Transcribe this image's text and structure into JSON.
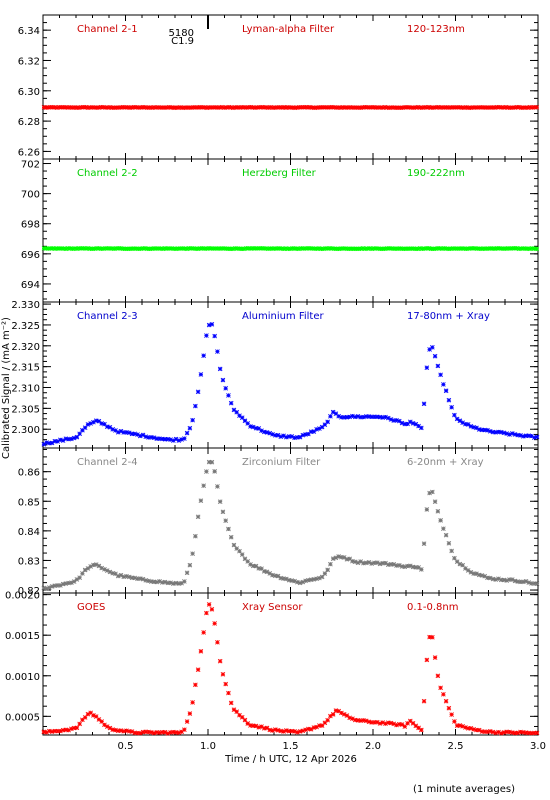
{
  "chart_data": [
    {
      "type": "scatter",
      "panel": "Channel 2-1",
      "annotations": [
        "Channel 2-1",
        "Lyman-alpha Filter",
        "120-123nm"
      ],
      "colors": {
        "annotation": "#cc0000",
        "series": "#ff0000"
      },
      "ylim": [
        6.255,
        6.35
      ],
      "yticks": [
        "6.26",
        "6.28",
        "6.30",
        "6.32",
        "6.34"
      ],
      "marker": {
        "time": 1.0,
        "labels": [
          "5180",
          "C1.9"
        ]
      },
      "series": [
        {
          "shape": "flat",
          "level": 6.289,
          "noise": 0.0002
        }
      ]
    },
    {
      "type": "scatter",
      "panel": "Channel 2-2",
      "annotations": [
        "Channel 2-2",
        "Herzberg Filter",
        "190-222nm"
      ],
      "colors": {
        "annotation": "#00cc00",
        "series": "#00ff00"
      },
      "ylim": [
        692.8,
        702.3
      ],
      "yticks": [
        "694",
        "696",
        "698",
        "700",
        "702"
      ],
      "series": [
        {
          "shape": "flat",
          "level": 696.35,
          "noise": 0.02
        }
      ]
    },
    {
      "type": "scatter",
      "panel": "Channel 2-3",
      "annotations": [
        "Channel 2-3",
        "Aluminium Filter",
        "17-80nm + Xray"
      ],
      "colors": {
        "annotation": "#0000cc",
        "series": "#0000ff"
      },
      "ylim": [
        2.2955,
        2.3305
      ],
      "yticks": [
        "2.300",
        "2.305",
        "2.310",
        "2.315",
        "2.320",
        "2.325",
        "2.330"
      ],
      "series": [
        {
          "shape": "events",
          "x": [
            0.0,
            0.2,
            0.27,
            0.33,
            0.45,
            0.6,
            0.75,
            0.85,
            0.9,
            0.95,
            1.0,
            1.03,
            1.08,
            1.15,
            1.25,
            1.4,
            1.55,
            1.7,
            1.76,
            1.8,
            1.9,
            2.05,
            2.15,
            2.2,
            2.22,
            2.3,
            2.32,
            2.35,
            2.4,
            2.5,
            2.6,
            2.7,
            2.8,
            2.9,
            3.0
          ],
          "y": [
            2.2965,
            2.298,
            2.301,
            2.302,
            2.2995,
            2.2985,
            2.2975,
            2.2975,
            2.301,
            2.311,
            2.325,
            2.325,
            2.313,
            2.305,
            2.301,
            2.2985,
            2.298,
            2.3005,
            2.304,
            2.303,
            2.303,
            2.303,
            2.302,
            2.301,
            2.302,
            2.3,
            2.313,
            2.321,
            2.314,
            2.3025,
            2.3005,
            2.2995,
            2.299,
            2.2985,
            2.298
          ]
        }
      ]
    },
    {
      "type": "scatter",
      "panel": "Channel 2-4",
      "annotations": [
        "Channel 2-4",
        "Zirconium Filter",
        "6-20nm + Xray"
      ],
      "colors": {
        "annotation": "#888888",
        "series": "#777777"
      },
      "ylim": [
        0.819,
        0.868
      ],
      "yticks": [
        "0.82",
        "0.83",
        "0.84",
        "0.85",
        "0.86"
      ],
      "series": [
        {
          "shape": "events",
          "x": [
            0.0,
            0.2,
            0.27,
            0.32,
            0.45,
            0.6,
            0.75,
            0.85,
            0.9,
            0.95,
            1.0,
            1.03,
            1.08,
            1.15,
            1.25,
            1.4,
            1.55,
            1.7,
            1.76,
            1.8,
            1.9,
            2.05,
            2.15,
            2.2,
            2.22,
            2.3,
            2.32,
            2.35,
            2.4,
            2.5,
            2.6,
            2.7,
            2.8,
            2.9,
            3.0
          ],
          "y": [
            0.8205,
            0.823,
            0.8275,
            0.8285,
            0.825,
            0.8235,
            0.8225,
            0.822,
            0.83,
            0.848,
            0.863,
            0.863,
            0.848,
            0.836,
            0.829,
            0.825,
            0.8225,
            0.8245,
            0.8305,
            0.8315,
            0.8295,
            0.829,
            0.8285,
            0.8275,
            0.8285,
            0.827,
            0.845,
            0.855,
            0.845,
            0.83,
            0.826,
            0.824,
            0.8235,
            0.823,
            0.822
          ]
        }
      ]
    },
    {
      "type": "scatter",
      "panel": "GOES",
      "annotations": [
        "GOES",
        "Xray Sensor",
        "0.1-0.8nm"
      ],
      "colors": {
        "annotation": "#cc0000",
        "series": "#ff0000"
      },
      "ylim": [
        0.00027,
        0.00202
      ],
      "yticks": [
        "0.0005",
        "0.0010",
        "0.0015",
        "0.0020"
      ],
      "series": [
        {
          "shape": "events",
          "x": [
            0.0,
            0.2,
            0.28,
            0.32,
            0.4,
            0.55,
            0.75,
            0.85,
            0.9,
            0.95,
            1.0,
            1.03,
            1.08,
            1.15,
            1.25,
            1.4,
            1.55,
            1.7,
            1.78,
            1.82,
            1.9,
            2.05,
            2.15,
            2.2,
            2.22,
            2.3,
            2.32,
            2.35,
            2.4,
            2.5,
            2.6,
            2.7,
            2.8,
            2.9,
            3.0
          ],
          "y": [
            0.0003,
            0.00035,
            0.00055,
            0.0005,
            0.00035,
            0.0003,
            0.0003,
            0.0003,
            0.0006,
            0.0012,
            0.0019,
            0.0018,
            0.0011,
            0.0006,
            0.0004,
            0.00033,
            0.0003,
            0.0004,
            0.00058,
            0.00052,
            0.00045,
            0.00042,
            0.0004,
            0.00038,
            0.00045,
            0.00032,
            0.0011,
            0.0016,
            0.0009,
            0.0004,
            0.00034,
            0.00031,
            0.0003,
            0.0003,
            0.00029
          ]
        }
      ]
    }
  ],
  "x_axis": {
    "xlim": [
      0,
      3.0
    ],
    "ticks": [
      0.5,
      1.0,
      1.5,
      2.0,
      2.5,
      3.0
    ],
    "tick_labels": [
      "0.5",
      "1.0",
      "1.5",
      "2.0",
      "2.5",
      "3.0"
    ],
    "label": "Time / h UTC, 12 Apr 2026"
  },
  "y_axis_label": "Calibrated Signal / (mA m⁻²)",
  "footer_note": "(1 minute averages)"
}
